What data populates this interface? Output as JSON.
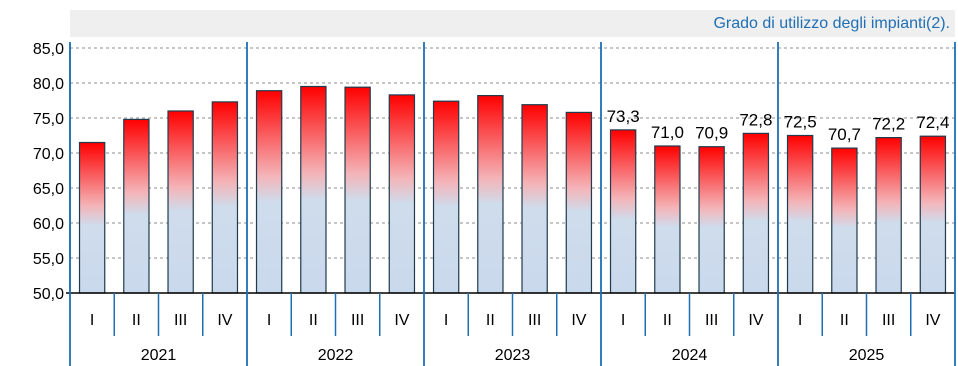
{
  "chart_data": {
    "type": "bar",
    "title": "Grado di utilizzo degli impianti(2).",
    "ylim": [
      50,
      85
    ],
    "yticks": [
      "50,0",
      "55,0",
      "60,0",
      "65,0",
      "70,0",
      "75,0",
      "80,0",
      "85,0"
    ],
    "grid": true,
    "years": [
      "2021",
      "2022",
      "2023",
      "2024",
      "2025"
    ],
    "quarters": [
      "I",
      "II",
      "III",
      "IV"
    ],
    "categories": [
      "2021-I",
      "2021-II",
      "2021-III",
      "2021-IV",
      "2022-I",
      "2022-II",
      "2022-III",
      "2022-IV",
      "2023-I",
      "2023-II",
      "2023-III",
      "2023-IV",
      "2024-I",
      "2024-II",
      "2024-III",
      "2024-IV",
      "2025-I",
      "2025-II",
      "2025-III",
      "2025-IV"
    ],
    "values": [
      71.5,
      74.8,
      76.0,
      77.3,
      78.9,
      79.5,
      79.4,
      78.3,
      77.4,
      78.2,
      76.9,
      75.8,
      73.3,
      71.0,
      70.9,
      72.8,
      72.5,
      70.7,
      72.2,
      72.4
    ],
    "data_labels": [
      "",
      "",
      "",
      "",
      "",
      "",
      "",
      "",
      "",
      "",
      "",
      "",
      "73,3",
      "71,0",
      "70,9",
      "72,8",
      "72,5",
      "70,7",
      "72,2",
      "72,4"
    ],
    "colors": {
      "bar_top": "#ff0000",
      "bar_bottom": "#c9d9ec",
      "bar_outline": "#1f3b4d",
      "axis_blue": "#1e6fb5",
      "title_blue": "#1e6fb5",
      "header_band": "#efefef",
      "grid": "#8c8c8c"
    }
  }
}
